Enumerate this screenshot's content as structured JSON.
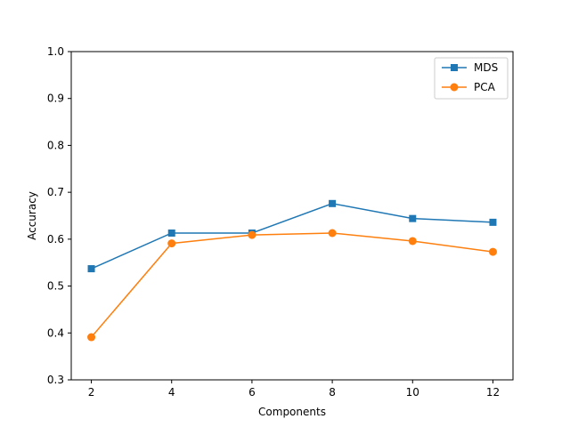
{
  "chart_data": {
    "type": "line",
    "title": "",
    "xlabel": "Components",
    "ylabel": "Accuracy",
    "x": [
      2,
      4,
      6,
      8,
      10,
      12
    ],
    "xlim": [
      1.5,
      12.5
    ],
    "ylim": [
      0.3,
      1.0
    ],
    "xticks": [
      "2",
      "4",
      "6",
      "8",
      "10",
      "12"
    ],
    "yticks": [
      "0.3",
      "0.4",
      "0.5",
      "0.6",
      "0.7",
      "0.8",
      "0.9",
      "1.0"
    ],
    "grid": false,
    "legend_position": "top-right",
    "series": [
      {
        "name": "MDS",
        "color": "#1f77b4",
        "marker": "square",
        "values": [
          0.537,
          0.613,
          0.613,
          0.676,
          0.644,
          0.636
        ]
      },
      {
        "name": "PCA",
        "color": "#ff7f0e",
        "marker": "circle",
        "values": [
          0.391,
          0.591,
          0.609,
          0.613,
          0.596,
          0.573
        ]
      }
    ]
  }
}
